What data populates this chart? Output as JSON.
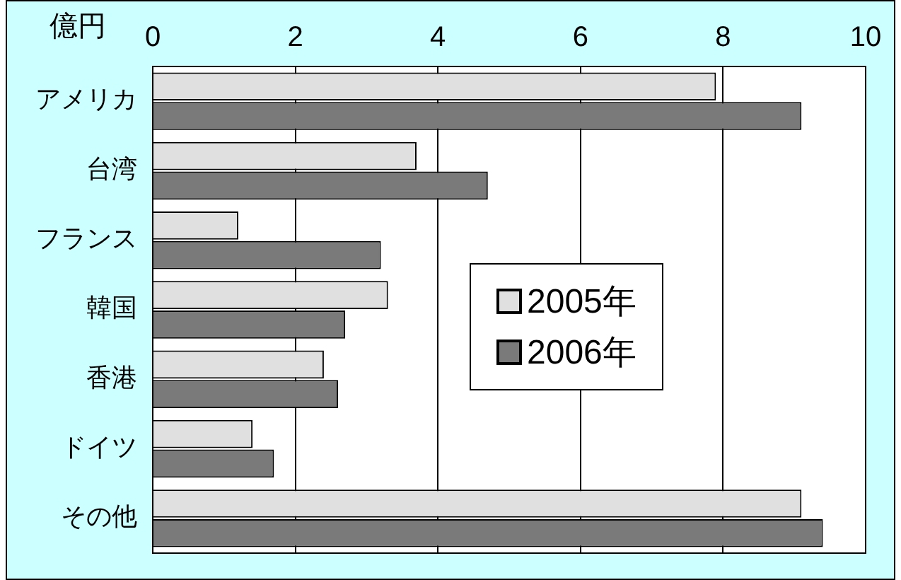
{
  "chart_data": {
    "type": "bar",
    "orientation": "horizontal",
    "xlabel": "億円",
    "categories": [
      "アメリカ",
      "台湾",
      "フランス",
      "韓国",
      "香港",
      "ドイツ",
      "その他"
    ],
    "series": [
      {
        "name": "2005年",
        "color": "#e0e0e0",
        "values": [
          7.9,
          3.7,
          1.2,
          3.3,
          2.4,
          1.4,
          9.1
        ]
      },
      {
        "name": "2006年",
        "color": "#7a7a7a",
        "values": [
          9.1,
          4.7,
          3.2,
          2.7,
          2.6,
          1.7,
          9.4
        ]
      }
    ],
    "xlim": [
      0,
      10
    ],
    "xticks": [
      0,
      2,
      4,
      6,
      8,
      10
    ],
    "grid": "x",
    "legend": "center"
  }
}
